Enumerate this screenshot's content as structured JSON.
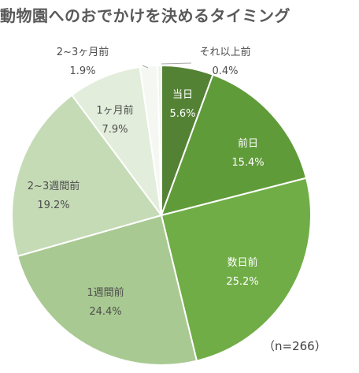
{
  "title": "動物園へのおでかけを決めるタイミング",
  "note": "（n=266）",
  "colors": {
    "title": "#595959",
    "label_dark": "#4d4d4d",
    "label_light": "#ffffff",
    "leader": "#a6a6a6",
    "slice_border": "#ffffff"
  },
  "chart_data": {
    "type": "pie",
    "start": "12 o'clock",
    "direction": "clockwise",
    "slices": [
      {
        "label": "当日",
        "value": 5.6,
        "value_label": "5.6%",
        "color": "#548235"
      },
      {
        "label": "前日",
        "value": 15.4,
        "value_label": "15.4%",
        "color": "#609b3a"
      },
      {
        "label": "数日前",
        "value": 25.2,
        "value_label": "25.2%",
        "color": "#70ad47"
      },
      {
        "label": "1週間前",
        "value": 24.4,
        "value_label": "24.4%",
        "color": "#a9c992"
      },
      {
        "label": "2~3週間前",
        "value": 19.2,
        "value_label": "19.2%",
        "color": "#c5dbb6"
      },
      {
        "label": "1ヶ月前",
        "value": 7.9,
        "value_label": "7.9%",
        "color": "#e2eddb"
      },
      {
        "label": "2~3ヶ月前",
        "value": 1.9,
        "value_label": "1.9%",
        "color": "#f5f8f2"
      },
      {
        "label": "それ以上前",
        "value": 0.4,
        "value_label": "0.4%",
        "color": "#edf3e8"
      }
    ]
  }
}
